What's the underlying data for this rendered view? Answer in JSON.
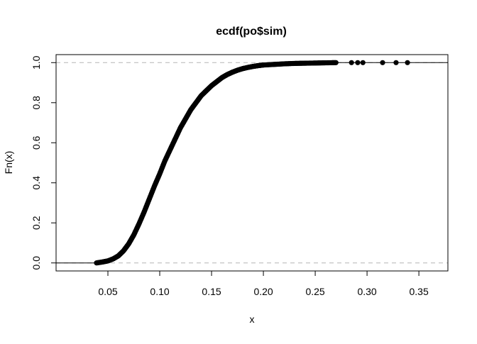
{
  "chart_data": {
    "type": "scatter",
    "title": "ecdf(po$sim)",
    "xlabel": "x",
    "ylabel": "Fn(x)",
    "xlim": [
      0.0,
      0.378
    ],
    "ylim": [
      -0.04,
      1.04
    ],
    "x_ticks": [
      "0.05",
      "0.10",
      "0.15",
      "0.20",
      "0.25",
      "0.30",
      "0.35"
    ],
    "x_tick_values": [
      0.05,
      0.1,
      0.15,
      0.2,
      0.25,
      0.3,
      0.35
    ],
    "y_ticks": [
      "0.0",
      "0.2",
      "0.4",
      "0.6",
      "0.8",
      "1.0"
    ],
    "y_tick_values": [
      0.0,
      0.2,
      0.4,
      0.6,
      0.8,
      1.0
    ],
    "reference_lines": [
      0.0,
      1.0
    ],
    "grid": false,
    "curve": {
      "x": [
        0.039,
        0.045,
        0.05,
        0.055,
        0.06,
        0.065,
        0.07,
        0.075,
        0.08,
        0.085,
        0.09,
        0.095,
        0.1,
        0.105,
        0.11,
        0.115,
        0.12,
        0.125,
        0.13,
        0.135,
        0.14,
        0.145,
        0.15,
        0.155,
        0.16,
        0.165,
        0.17,
        0.175,
        0.18,
        0.185,
        0.19,
        0.195,
        0.2,
        0.21,
        0.22,
        0.23,
        0.24,
        0.25,
        0.26,
        0.27
      ],
      "y": [
        0.0,
        0.005,
        0.01,
        0.02,
        0.035,
        0.06,
        0.095,
        0.14,
        0.195,
        0.255,
        0.32,
        0.385,
        0.445,
        0.51,
        0.565,
        0.62,
        0.675,
        0.72,
        0.765,
        0.8,
        0.835,
        0.86,
        0.885,
        0.905,
        0.925,
        0.94,
        0.952,
        0.962,
        0.97,
        0.976,
        0.981,
        0.985,
        0.988,
        0.991,
        0.994,
        0.996,
        0.997,
        0.998,
        0.999,
        1.0
      ]
    },
    "outliers": {
      "x": [
        0.285,
        0.291,
        0.296,
        0.315,
        0.328,
        0.339
      ],
      "y": [
        1.0,
        1.0,
        1.0,
        1.0,
        1.0,
        1.0
      ]
    },
    "colors": {
      "points": "#000000",
      "reference": "#bebebe",
      "axis": "#000000"
    }
  }
}
